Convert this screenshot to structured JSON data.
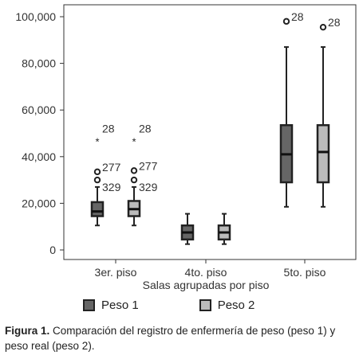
{
  "chart_data": {
    "type": "boxplot",
    "xlabel": "Salas agrupadas por piso",
    "ylabel": "",
    "ylim": [
      0,
      100000
    ],
    "yticks": [
      "0",
      "20,000",
      "40,000",
      "60,000",
      "80,000",
      "100,000"
    ],
    "categories": [
      "3er. piso",
      "4to. piso",
      "5to. piso"
    ],
    "series": [
      {
        "name": "Peso 1",
        "color": "#666666",
        "boxes": [
          {
            "min": 10500,
            "q1": 14500,
            "median": 16500,
            "q3": 20500,
            "max": 27000
          },
          {
            "min": 2500,
            "q1": 4500,
            "median": 7500,
            "q3": 10500,
            "max": 15500
          },
          {
            "min": 18500,
            "q1": 29000,
            "median": 41000,
            "q3": 53500,
            "max": 87000
          }
        ],
        "outliers": [
          {
            "category": 0,
            "value": 47000,
            "marker": "star",
            "label": "28"
          },
          {
            "category": 0,
            "value": 33500,
            "marker": "circle",
            "label": "277"
          },
          {
            "category": 0,
            "value": 30000,
            "marker": "circle",
            "label": "329"
          },
          {
            "category": 2,
            "value": 98000,
            "marker": "circle",
            "label": "28"
          }
        ]
      },
      {
        "name": "Peso 2",
        "color": "#bbbbbb",
        "boxes": [
          {
            "min": 10500,
            "q1": 14500,
            "median": 17500,
            "q3": 21000,
            "max": 27000
          },
          {
            "min": 2500,
            "q1": 4500,
            "median": 7500,
            "q3": 10500,
            "max": 15500
          },
          {
            "min": 18500,
            "q1": 29000,
            "median": 42000,
            "q3": 53500,
            "max": 87000
          }
        ],
        "outliers": [
          {
            "category": 0,
            "value": 47000,
            "marker": "star",
            "label": "28"
          },
          {
            "category": 0,
            "value": 34000,
            "marker": "circle",
            "label": "277"
          },
          {
            "category": 0,
            "value": 30000,
            "marker": "circle",
            "label": "329"
          },
          {
            "category": 2,
            "value": 95500,
            "marker": "circle",
            "label": "28"
          }
        ]
      }
    ],
    "legend_position": "bottom"
  },
  "caption": {
    "label": "Figura 1.",
    "text": " Comparación del registro de enfermería de peso (peso 1) y peso real (peso 2)."
  }
}
